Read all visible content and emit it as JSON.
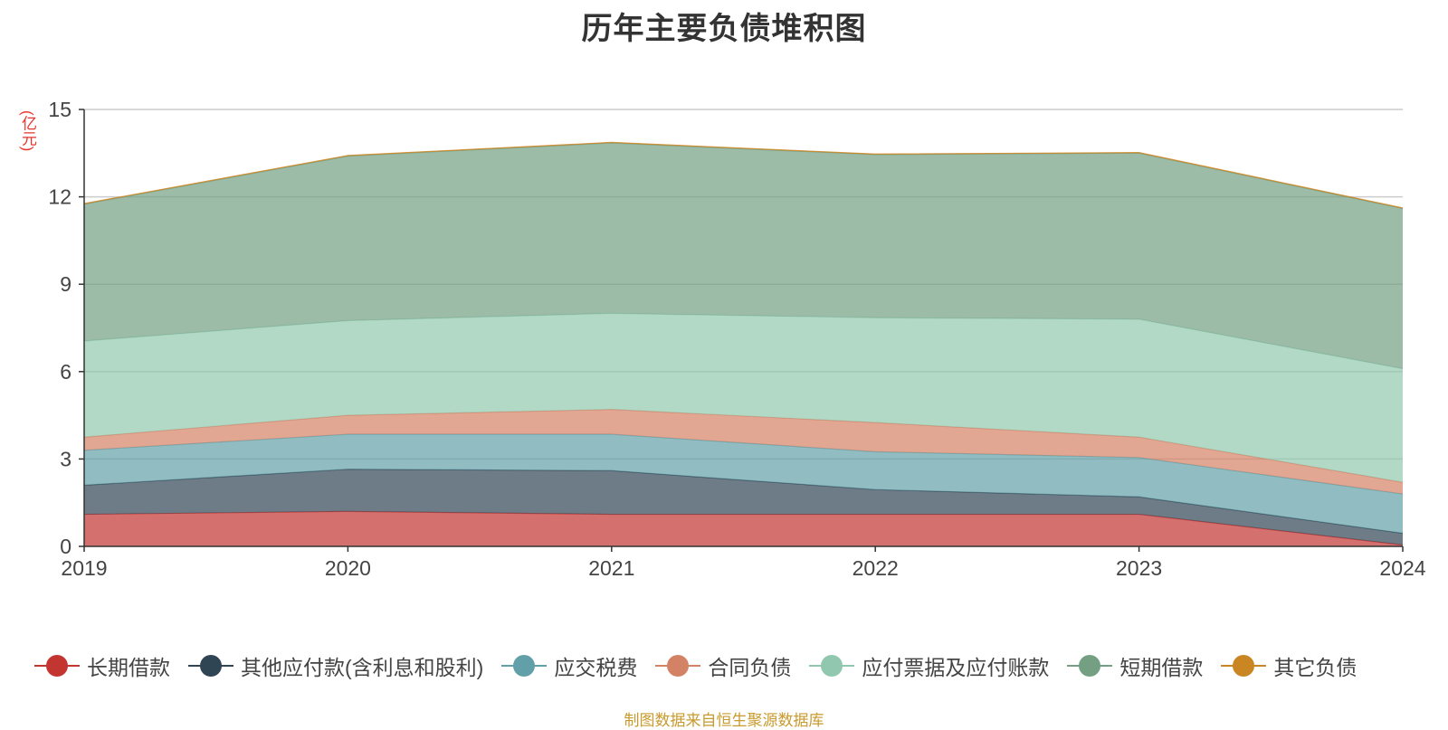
{
  "title": "历年主要负债堆积图",
  "unit_label": "(亿元)",
  "source_note": "制图数据来自恒生聚源数据库",
  "chart_data": {
    "type": "area",
    "stacked": true,
    "title": "历年主要负债堆积图",
    "ylabel": "(亿元)",
    "x": [
      "2019",
      "2020",
      "2021",
      "2022",
      "2023",
      "2024"
    ],
    "ylim": [
      0,
      15
    ],
    "yticks": [
      "0",
      "3",
      "6",
      "9",
      "12",
      "15"
    ],
    "grid": true,
    "legend_position": "bottom",
    "series": [
      {
        "name": "长期借款",
        "color": "#c23531",
        "values": [
          1.1,
          1.2,
          1.1,
          1.1,
          1.1,
          0.05
        ]
      },
      {
        "name": "其他应付款(含利息和股利)",
        "color": "#2f4554",
        "values": [
          1.0,
          1.45,
          1.5,
          0.85,
          0.6,
          0.4
        ]
      },
      {
        "name": "应交税费",
        "color": "#61a0a8",
        "values": [
          1.2,
          1.2,
          1.25,
          1.3,
          1.35,
          1.35
        ]
      },
      {
        "name": "合同负债",
        "color": "#d48265",
        "values": [
          0.45,
          0.65,
          0.85,
          1.0,
          0.7,
          0.4
        ]
      },
      {
        "name": "应付票据及应付账款",
        "color": "#91c7ae",
        "values": [
          3.3,
          3.25,
          3.3,
          3.6,
          4.05,
          3.9
        ]
      },
      {
        "name": "短期借款",
        "color": "#749f83",
        "values": [
          4.7,
          5.65,
          5.85,
          5.6,
          5.7,
          5.5
        ]
      },
      {
        "name": "其它负债",
        "color": "#ca8622",
        "values": [
          0.02,
          0.02,
          0.02,
          0.02,
          0.02,
          0.02
        ]
      }
    ]
  }
}
